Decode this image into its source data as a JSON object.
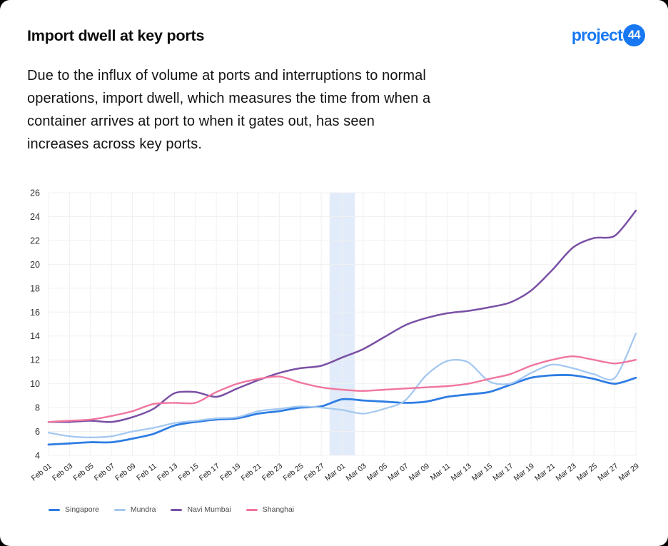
{
  "header": {
    "title": "Import dwell at key ports",
    "logo": {
      "text": "project",
      "badge": "44",
      "color": "#1778F2"
    }
  },
  "description": "Due to the influx of volume at ports and interruptions to normal\noperations, import dwell, which measures the time from when a\ncontainer arrives at port to when it gates out, has seen\nincreases across key ports.",
  "chart_data": {
    "type": "line",
    "x": [
      "Feb 01",
      "Feb 03",
      "Feb 05",
      "Feb 07",
      "Feb 09",
      "Feb 11",
      "Feb 13",
      "Feb 15",
      "Feb 17",
      "Feb 19",
      "Feb 21",
      "Feb 23",
      "Feb 25",
      "Feb 27",
      "Mar 01",
      "Mar 03",
      "Mar 05",
      "Mar 07",
      "Mar 09",
      "Mar 11",
      "Mar 13",
      "Mar 15",
      "Mar 17",
      "Mar 19",
      "Mar 21",
      "Mar 23",
      "Mar 25",
      "Mar 27",
      "Mar 29"
    ],
    "series": [
      {
        "name": "Singapore",
        "color": "#2E7DE3",
        "values": [
          4.9,
          5.0,
          5.1,
          5.1,
          5.4,
          5.8,
          6.5,
          6.8,
          7.0,
          7.1,
          7.5,
          7.7,
          8.0,
          8.1,
          8.7,
          8.6,
          8.5,
          8.4,
          8.5,
          8.9,
          9.1,
          9.3,
          9.9,
          10.5,
          10.7,
          10.7,
          10.4,
          10.0,
          10.5
        ]
      },
      {
        "name": "Mundra",
        "color": "#A5C8F0",
        "values": [
          5.9,
          5.6,
          5.5,
          5.6,
          6.0,
          6.3,
          6.7,
          6.9,
          7.1,
          7.2,
          7.7,
          7.9,
          8.1,
          8.0,
          7.8,
          7.5,
          7.9,
          8.6,
          10.7,
          11.9,
          11.8,
          10.2,
          10.0,
          10.9,
          11.6,
          11.3,
          10.8,
          10.5,
          14.2
        ]
      },
      {
        "name": "Navi Mumbai",
        "color": "#7A50A5",
        "values": [
          6.8,
          6.8,
          6.9,
          6.8,
          7.2,
          7.9,
          9.2,
          9.3,
          8.9,
          9.6,
          10.3,
          10.9,
          11.3,
          11.5,
          12.2,
          12.9,
          13.9,
          14.9,
          15.5,
          15.9,
          16.1,
          16.4,
          16.8,
          17.8,
          19.5,
          21.4,
          22.2,
          22.4,
          24.5
        ]
      },
      {
        "name": "Shanghai",
        "color": "#F0759F",
        "values": [
          6.8,
          6.9,
          7.0,
          7.3,
          7.7,
          8.3,
          8.4,
          8.4,
          9.3,
          10.0,
          10.4,
          10.6,
          10.1,
          9.7,
          9.5,
          9.4,
          9.5,
          9.6,
          9.7,
          9.8,
          10.0,
          10.4,
          10.8,
          11.5,
          12.0,
          12.3,
          12.0,
          11.7,
          12.0
        ]
      }
    ],
    "ylim": [
      4,
      26
    ],
    "y_ticks": [
      4,
      6,
      8,
      10,
      12,
      14,
      16,
      18,
      20,
      22,
      24,
      26
    ],
    "grid": true,
    "legend_position": "bottom",
    "highlight_band": {
      "center": "Mar 01",
      "width_days": 2.4,
      "color": "#DCE7F8"
    },
    "grid_color": "#F0F0F2",
    "axis_text_color": "#303030"
  }
}
